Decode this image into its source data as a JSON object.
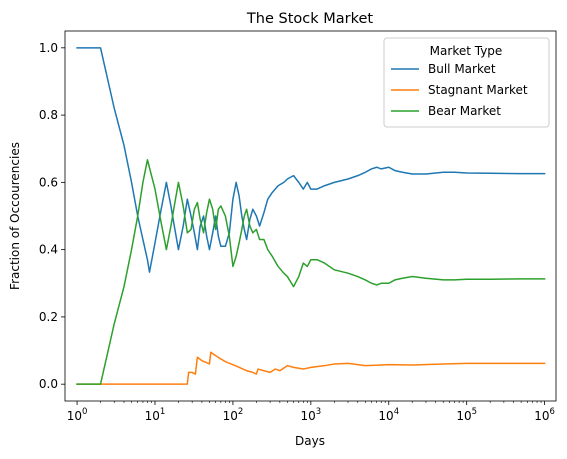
{
  "chart_data": {
    "type": "line",
    "title": "The Stock Market",
    "xlabel": "Days",
    "ylabel": "Fraction of Occourencies",
    "xscale": "log",
    "xlim": [
      0.7,
      1400000
    ],
    "ylim": [
      -0.05,
      1.05
    ],
    "xticks": [
      {
        "base": "10",
        "exp": "0"
      },
      {
        "base": "10",
        "exp": "1"
      },
      {
        "base": "10",
        "exp": "2"
      },
      {
        "base": "10",
        "exp": "3"
      },
      {
        "base": "10",
        "exp": "4"
      },
      {
        "base": "10",
        "exp": "5"
      },
      {
        "base": "10",
        "exp": "6"
      }
    ],
    "yticks": [
      "0.0",
      "0.2",
      "0.4",
      "0.6",
      "0.8",
      "1.0"
    ],
    "grid": false,
    "legend": {
      "title": "Market Type",
      "placement": "top-right"
    },
    "series": [
      {
        "name": "Bull Market",
        "color": "#1f77b4",
        "points": [
          [
            1,
            1.0
          ],
          [
            2,
            1.0
          ],
          [
            3,
            0.82
          ],
          [
            4,
            0.71
          ],
          [
            5,
            0.6
          ],
          [
            6,
            0.5
          ],
          [
            7,
            0.43
          ],
          [
            8,
            0.37
          ],
          [
            8.5,
            0.333
          ],
          [
            10,
            0.42
          ],
          [
            12,
            0.52
          ],
          [
            14,
            0.6
          ],
          [
            16,
            0.53
          ],
          [
            18,
            0.46
          ],
          [
            20,
            0.4
          ],
          [
            23,
            0.47
          ],
          [
            26,
            0.55
          ],
          [
            29,
            0.5
          ],
          [
            32,
            0.45
          ],
          [
            35,
            0.4
          ],
          [
            38,
            0.47
          ],
          [
            42,
            0.5
          ],
          [
            46,
            0.44
          ],
          [
            50,
            0.4
          ],
          [
            55,
            0.45
          ],
          [
            60,
            0.5
          ],
          [
            65,
            0.44
          ],
          [
            70,
            0.41
          ],
          [
            80,
            0.41
          ],
          [
            90,
            0.45
          ],
          [
            100,
            0.55
          ],
          [
            110,
            0.6
          ],
          [
            120,
            0.56
          ],
          [
            130,
            0.5
          ],
          [
            140,
            0.46
          ],
          [
            150,
            0.43
          ],
          [
            165,
            0.49
          ],
          [
            180,
            0.52
          ],
          [
            200,
            0.5
          ],
          [
            220,
            0.47
          ],
          [
            250,
            0.51
          ],
          [
            280,
            0.55
          ],
          [
            320,
            0.57
          ],
          [
            380,
            0.59
          ],
          [
            450,
            0.6
          ],
          [
            500,
            0.61
          ],
          [
            600,
            0.62
          ],
          [
            700,
            0.6
          ],
          [
            800,
            0.58
          ],
          [
            900,
            0.6
          ],
          [
            1000,
            0.58
          ],
          [
            1200,
            0.58
          ],
          [
            1500,
            0.59
          ],
          [
            2000,
            0.6
          ],
          [
            3000,
            0.61
          ],
          [
            4000,
            0.62
          ],
          [
            5000,
            0.63
          ],
          [
            6000,
            0.64
          ],
          [
            7000,
            0.645
          ],
          [
            8000,
            0.64
          ],
          [
            10000,
            0.645
          ],
          [
            12000,
            0.635
          ],
          [
            15000,
            0.63
          ],
          [
            20000,
            0.625
          ],
          [
            30000,
            0.625
          ],
          [
            50000,
            0.63
          ],
          [
            70000,
            0.63
          ],
          [
            100000,
            0.628
          ],
          [
            200000,
            0.627
          ],
          [
            500000,
            0.626
          ],
          [
            1000000,
            0.626
          ]
        ]
      },
      {
        "name": "Stagnant Market",
        "color": "#ff7f0e",
        "points": [
          [
            1,
            0.0
          ],
          [
            2,
            0.0
          ],
          [
            10,
            0.0
          ],
          [
            20,
            0.0
          ],
          [
            26,
            0.0
          ],
          [
            27,
            0.035
          ],
          [
            30,
            0.035
          ],
          [
            33,
            0.03
          ],
          [
            35,
            0.08
          ],
          [
            40,
            0.07
          ],
          [
            45,
            0.065
          ],
          [
            50,
            0.06
          ],
          [
            52,
            0.095
          ],
          [
            60,
            0.085
          ],
          [
            70,
            0.075
          ],
          [
            80,
            0.067
          ],
          [
            100,
            0.058
          ],
          [
            120,
            0.05
          ],
          [
            150,
            0.04
          ],
          [
            180,
            0.035
          ],
          [
            200,
            0.03
          ],
          [
            210,
            0.045
          ],
          [
            250,
            0.04
          ],
          [
            300,
            0.035
          ],
          [
            350,
            0.045
          ],
          [
            400,
            0.04
          ],
          [
            500,
            0.055
          ],
          [
            600,
            0.05
          ],
          [
            800,
            0.045
          ],
          [
            1000,
            0.05
          ],
          [
            1500,
            0.055
          ],
          [
            2000,
            0.06
          ],
          [
            3000,
            0.062
          ],
          [
            5000,
            0.055
          ],
          [
            10000,
            0.058
          ],
          [
            20000,
            0.057
          ],
          [
            50000,
            0.06
          ],
          [
            100000,
            0.062
          ],
          [
            300000,
            0.062
          ],
          [
            1000000,
            0.062
          ]
        ]
      },
      {
        "name": "Bear Market",
        "color": "#2ca02c",
        "points": [
          [
            1,
            0.0
          ],
          [
            2,
            0.0
          ],
          [
            3,
            0.18
          ],
          [
            4,
            0.29
          ],
          [
            5,
            0.4
          ],
          [
            6,
            0.5
          ],
          [
            7,
            0.6
          ],
          [
            8,
            0.667
          ],
          [
            10,
            0.58
          ],
          [
            12,
            0.48
          ],
          [
            14,
            0.4
          ],
          [
            16,
            0.47
          ],
          [
            18,
            0.54
          ],
          [
            20,
            0.6
          ],
          [
            23,
            0.53
          ],
          [
            26,
            0.45
          ],
          [
            29,
            0.46
          ],
          [
            32,
            0.52
          ],
          [
            35,
            0.54
          ],
          [
            38,
            0.49
          ],
          [
            42,
            0.45
          ],
          [
            46,
            0.51
          ],
          [
            50,
            0.55
          ],
          [
            55,
            0.52
          ],
          [
            60,
            0.46
          ],
          [
            65,
            0.52
          ],
          [
            70,
            0.53
          ],
          [
            80,
            0.5
          ],
          [
            90,
            0.44
          ],
          [
            100,
            0.35
          ],
          [
            110,
            0.38
          ],
          [
            120,
            0.42
          ],
          [
            130,
            0.46
          ],
          [
            140,
            0.5
          ],
          [
            150,
            0.52
          ],
          [
            165,
            0.47
          ],
          [
            180,
            0.45
          ],
          [
            200,
            0.46
          ],
          [
            220,
            0.43
          ],
          [
            250,
            0.43
          ],
          [
            280,
            0.4
          ],
          [
            320,
            0.38
          ],
          [
            380,
            0.35
          ],
          [
            450,
            0.33
          ],
          [
            500,
            0.32
          ],
          [
            600,
            0.29
          ],
          [
            700,
            0.32
          ],
          [
            800,
            0.36
          ],
          [
            900,
            0.35
          ],
          [
            1000,
            0.37
          ],
          [
            1200,
            0.37
          ],
          [
            1500,
            0.36
          ],
          [
            2000,
            0.34
          ],
          [
            3000,
            0.33
          ],
          [
            4000,
            0.32
          ],
          [
            5000,
            0.31
          ],
          [
            6000,
            0.3
          ],
          [
            7000,
            0.295
          ],
          [
            8000,
            0.3
          ],
          [
            10000,
            0.3
          ],
          [
            12000,
            0.31
          ],
          [
            15000,
            0.315
          ],
          [
            20000,
            0.32
          ],
          [
            30000,
            0.315
          ],
          [
            50000,
            0.31
          ],
          [
            70000,
            0.31
          ],
          [
            100000,
            0.312
          ],
          [
            200000,
            0.312
          ],
          [
            500000,
            0.313
          ],
          [
            1000000,
            0.313
          ]
        ]
      }
    ]
  }
}
